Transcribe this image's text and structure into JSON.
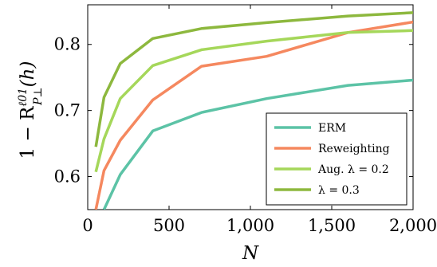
{
  "chart_data": {
    "type": "line",
    "x_label": "N",
    "y_label": "1 − R",
    "y_label_sub": "P⊥",
    "y_label_sup": "ℓ01",
    "y_label_arg": "(h)",
    "xlim": [
      0,
      2000
    ],
    "ylim": [
      0.55,
      0.86
    ],
    "x_ticks": [
      0,
      500,
      1000,
      1500,
      2000
    ],
    "x_tick_labels": [
      "0",
      "500",
      "1,000",
      "1,500",
      "2,000"
    ],
    "y_ticks": [
      0.6,
      0.7,
      0.8
    ],
    "y_tick_labels": [
      "0.6",
      "0.7",
      "0.8"
    ],
    "grid": false,
    "legend_position": "bottom-right",
    "series": [
      {
        "name": "ERM",
        "color": "#5cc3a6",
        "x": [
          100,
          200,
          400,
          700,
          1100,
          1600,
          2000
        ],
        "y": [
          0.55,
          0.603,
          0.669,
          0.697,
          0.718,
          0.738,
          0.746
        ]
      },
      {
        "name": "Reweighting",
        "color": "#f5885f",
        "x": [
          50,
          100,
          200,
          400,
          700,
          1100,
          1600,
          2000
        ],
        "y": [
          0.55,
          0.609,
          0.655,
          0.716,
          0.767,
          0.782,
          0.818,
          0.834
        ]
      },
      {
        "name": "Aug. λ = 0.2",
        "color": "#a5d75a",
        "x": [
          50,
          100,
          200,
          400,
          700,
          1100,
          1600,
          2000
        ],
        "y": [
          0.607,
          0.657,
          0.718,
          0.768,
          0.792,
          0.805,
          0.818,
          0.821
        ]
      },
      {
        "name": "λ = 0.3",
        "color": "#8db83e",
        "x": [
          50,
          100,
          200,
          400,
          700,
          1100,
          1600,
          2000
        ],
        "y": [
          0.645,
          0.72,
          0.771,
          0.809,
          0.824,
          0.833,
          0.843,
          0.848
        ]
      }
    ]
  }
}
